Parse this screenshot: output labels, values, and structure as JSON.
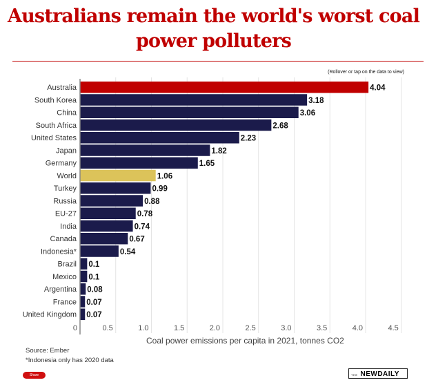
{
  "chart_data": {
    "type": "bar",
    "orientation": "horizontal",
    "title": "Australians remain the world's worst coal power polluters",
    "note": "(Rollover or tap on the data to view)",
    "categories": [
      "Australia",
      "South Korea",
      "China",
      "South Africa",
      "United States",
      "Japan",
      "Germany",
      "World",
      "Turkey",
      "Russia",
      "EU-27",
      "India",
      "Canada",
      "Indonesia*",
      "Brazil",
      "Mexico",
      "Argentina",
      "France",
      "United Kingdom"
    ],
    "values": [
      4.04,
      3.18,
      3.06,
      2.68,
      2.23,
      1.82,
      1.65,
      1.06,
      0.99,
      0.88,
      0.78,
      0.74,
      0.67,
      0.54,
      0.1,
      0.1,
      0.08,
      0.07,
      0.07
    ],
    "value_labels": [
      "4.04",
      "3.18",
      "3.06",
      "2.68",
      "2.23",
      "1.82",
      "1.65",
      "1.06",
      "0.99",
      "0.88",
      "0.78",
      "0.74",
      "0.67",
      "0.54",
      "0.1",
      "0.1",
      "0.08",
      "0.07",
      "0.07"
    ],
    "xlabel": "Coal power emissions per capita in 2021, tonnes CO2",
    "xlim": [
      0,
      4.5
    ],
    "xticks": [
      "0",
      "0.5",
      "1.0",
      "1.5",
      "2.0",
      "2.5",
      "3.0",
      "3.5",
      "4.0",
      "4.5"
    ],
    "grid": true,
    "colors": {
      "highlight": "#c00000",
      "default": "#1b1b4b",
      "world": "#dcc35a"
    }
  },
  "footer": {
    "source": "Source: Ember",
    "footnote": "*Indonesia only has 2020 data",
    "share": "Share",
    "logo_the": "THE",
    "logo": "NEWDAILY"
  }
}
